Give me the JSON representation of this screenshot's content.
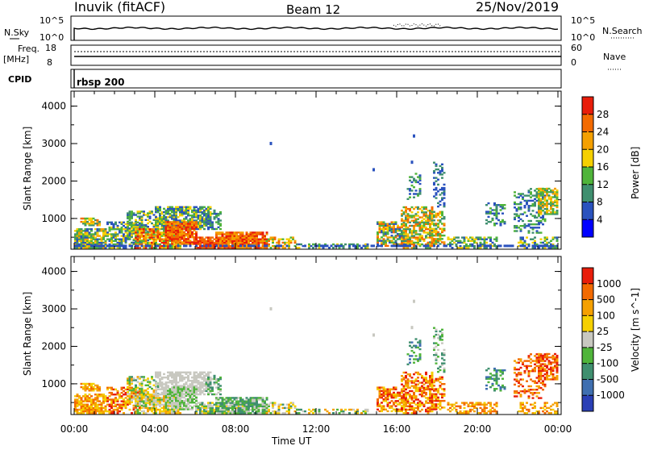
{
  "header": {
    "station": "Inuvik (fitACF)",
    "beam": "Beam 12",
    "date": "25/Nov/2019"
  },
  "strips": {
    "nsky_label": "N.Sky",
    "nsearch_label": "N.Search",
    "freq_label_1": "Freq.",
    "freq_label_2": "[MHz]",
    "nave_label": "Nave",
    "cpid_label": "CPID",
    "cpid_value": "rbsp 200",
    "noise_ticks_left": [
      "10^5",
      "10^0"
    ],
    "noise_ticks_right": [
      "10^5",
      "10^0"
    ],
    "freq_ticks_left": [
      "18",
      "8"
    ],
    "nave_ticks_right": [
      "60",
      "0"
    ]
  },
  "colors": {
    "noise_line": "#000000",
    "power_scale": [
      "#0000ff",
      "#2a52be",
      "#3f8f6f",
      "#4fb43a",
      "#f5d000",
      "#f5a000",
      "#f36a00",
      "#e81d0a"
    ],
    "velocity_scale": [
      "#2a3fb5",
      "#3f6fb0",
      "#3f8f6f",
      "#4fb43a",
      "#c8c8c0",
      "#f5d000",
      "#f5a000",
      "#f36a00",
      "#e81d0a"
    ]
  },
  "chart_data": [
    {
      "type": "heatmap",
      "name": "power",
      "ylabel": "Slant Range [km]",
      "xlabel": "Time UT",
      "x_ticks": [
        "00:00",
        "04:00",
        "08:00",
        "12:00",
        "16:00",
        "20:00",
        "00:00"
      ],
      "y_ticks": [
        "1000",
        "2000",
        "3000",
        "4000"
      ],
      "ylim": [
        180,
        4400
      ],
      "colorbar_label": "Power [dB]",
      "colorbar_ticks": [
        "4",
        "8",
        "12",
        "16",
        "20",
        "24",
        "28"
      ],
      "colorbar_range": [
        0,
        32
      ]
    },
    {
      "type": "heatmap",
      "name": "velocity",
      "ylabel": "Slant Range [km]",
      "xlabel": "Time UT",
      "x_ticks": [
        "00:00",
        "04:00",
        "08:00",
        "12:00",
        "16:00",
        "20:00",
        "00:00"
      ],
      "y_ticks": [
        "1000",
        "2000",
        "3000",
        "4000"
      ],
      "ylim": [
        180,
        4400
      ],
      "colorbar_label": "Velocity [m s^-1]",
      "colorbar_ticks": [
        "1000",
        "500",
        "100",
        "25",
        "-25",
        "-100",
        "-500",
        "-1000"
      ]
    }
  ],
  "x_axis_title": "Time UT"
}
